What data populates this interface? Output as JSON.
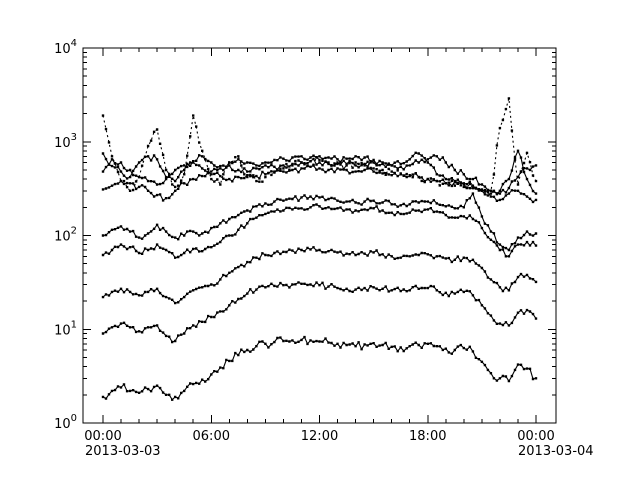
{
  "figure": {
    "background": "#ffffff",
    "line_color": "#000000"
  },
  "chart_data": {
    "type": "line",
    "title": "",
    "xlabel": "",
    "ylabel": "",
    "grid": false,
    "legend": "none",
    "x_axis": {
      "range_hours": [
        0,
        24
      ],
      "major_tick_hours": [
        0,
        6,
        12,
        18,
        24
      ],
      "major_tick_labels": [
        "00:00",
        "06:00",
        "12:00",
        "18:00",
        "00:00"
      ],
      "minor_tick_every_hours": 1,
      "date_label_left": "2013-03-03",
      "date_label_right": "2013-03-04"
    },
    "y_axis": {
      "scale": "log",
      "range": [
        1,
        10000
      ],
      "major_tick_exponents": [
        0,
        1,
        2,
        3,
        4
      ],
      "major_tick_labels": [
        {
          "base": "10",
          "exp": "0"
        },
        {
          "base": "10",
          "exp": "1"
        },
        {
          "base": "10",
          "exp": "2"
        },
        {
          "base": "10",
          "exp": "3"
        },
        {
          "base": "10",
          "exp": "4"
        }
      ],
      "minor_ticks": "2-9 per decade"
    },
    "anchor_hours": {
      "start": 0,
      "step": 0.5,
      "count": 49
    },
    "series": [
      {
        "name": "series-1-spiky",
        "style": "dotted",
        "marker": "square",
        "noise_dex": 0.05,
        "seed": 11,
        "values": [
          1900,
          700,
          380,
          300,
          420,
          900,
          1350,
          500,
          330,
          450,
          1900,
          800,
          400,
          350,
          600,
          700,
          420,
          380,
          420,
          480,
          520,
          560,
          600,
          620,
          640,
          600,
          580,
          560,
          600,
          560,
          520,
          500,
          480,
          460,
          440,
          420,
          400,
          380,
          360,
          340,
          330,
          320,
          310,
          300,
          1400,
          2900,
          350,
          760,
          380
        ]
      },
      {
        "name": "series-2",
        "style": "solid",
        "marker": "square",
        "noise_dex": 0.035,
        "seed": 12,
        "values": [
          750,
          550,
          480,
          420,
          600,
          700,
          650,
          420,
          380,
          500,
          620,
          700,
          600,
          550,
          600,
          650,
          600,
          560,
          600,
          640,
          660,
          680,
          700,
          680,
          700,
          680,
          650,
          660,
          700,
          680,
          640,
          600,
          560,
          540,
          560,
          600,
          650,
          700,
          600,
          500,
          450,
          400,
          350,
          300,
          280,
          320,
          420,
          520,
          560
        ]
      },
      {
        "name": "series-3",
        "style": "solid",
        "marker": "square",
        "noise_dex": 0.035,
        "seed": 13,
        "values": [
          480,
          650,
          600,
          500,
          420,
          380,
          350,
          400,
          500,
          560,
          600,
          520,
          480,
          520,
          560,
          500,
          480,
          520,
          560,
          540,
          560,
          580,
          600,
          620,
          600,
          580,
          600,
          580,
          560,
          580,
          600,
          580,
          560,
          580,
          650,
          750,
          600,
          450,
          400,
          380,
          350,
          320,
          300,
          280,
          300,
          400,
          800,
          400,
          280
        ]
      },
      {
        "name": "series-4",
        "style": "solid",
        "marker": "square",
        "noise_dex": 0.035,
        "seed": 14,
        "values": [
          310,
          340,
          380,
          360,
          330,
          300,
          270,
          250,
          300,
          360,
          400,
          430,
          450,
          430,
          400,
          420,
          440,
          430,
          450,
          470,
          480,
          500,
          520,
          540,
          520,
          500,
          520,
          500,
          480,
          500,
          480,
          460,
          440,
          450,
          430,
          420,
          400,
          380,
          360,
          370,
          360,
          340,
          300,
          260,
          240,
          280,
          300,
          260,
          240
        ]
      },
      {
        "name": "series-5",
        "style": "solid",
        "marker": "square",
        "noise_dex": 0.03,
        "seed": 15,
        "values": [
          100,
          115,
          125,
          110,
          95,
          105,
          130,
          110,
          95,
          100,
          110,
          105,
          120,
          135,
          150,
          165,
          185,
          205,
          220,
          230,
          235,
          245,
          255,
          260,
          255,
          245,
          235,
          230,
          225,
          230,
          235,
          225,
          215,
          210,
          215,
          225,
          230,
          220,
          205,
          195,
          200,
          280,
          160,
          110,
          80,
          70,
          95,
          110,
          105
        ]
      },
      {
        "name": "series-6",
        "style": "solid",
        "marker": "square",
        "noise_dex": 0.03,
        "seed": 16,
        "values": [
          62,
          70,
          80,
          75,
          65,
          70,
          80,
          70,
          58,
          65,
          72,
          68,
          75,
          85,
          100,
          115,
          135,
          155,
          170,
          180,
          185,
          190,
          195,
          200,
          205,
          200,
          195,
          190,
          185,
          190,
          195,
          185,
          175,
          170,
          175,
          185,
          190,
          180,
          165,
          155,
          160,
          150,
          120,
          90,
          70,
          60,
          80,
          85,
          78
        ]
      },
      {
        "name": "series-7",
        "style": "solid",
        "marker": "square",
        "noise_dex": 0.03,
        "seed": 17,
        "values": [
          22,
          25,
          27,
          25,
          23,
          25,
          27,
          22,
          19,
          22,
          26,
          28,
          30,
          34,
          40,
          46,
          52,
          58,
          62,
          65,
          67,
          69,
          70,
          71,
          70,
          68,
          66,
          64,
          62,
          64,
          66,
          63,
          60,
          58,
          60,
          62,
          63,
          60,
          57,
          55,
          58,
          55,
          45,
          34,
          28,
          26,
          36,
          38,
          32
        ]
      },
      {
        "name": "series-8",
        "style": "solid",
        "marker": "square",
        "noise_dex": 0.035,
        "seed": 18,
        "values": [
          9,
          10.5,
          11.5,
          10.5,
          9.5,
          10.5,
          11,
          8.5,
          7.5,
          9,
          11,
          12,
          13.5,
          15.5,
          18,
          21,
          24,
          26.5,
          28,
          29,
          29.5,
          30,
          30.5,
          30,
          29.5,
          28.5,
          27.5,
          27,
          26.5,
          27.5,
          28,
          27,
          26,
          25.5,
          26,
          27,
          27.5,
          26,
          24.5,
          24,
          25,
          23,
          18,
          14,
          11.5,
          11,
          15,
          16,
          13
        ]
      },
      {
        "name": "series-9",
        "style": "solid",
        "marker": "square",
        "noise_dex": 0.045,
        "seed": 19,
        "values": [
          1.9,
          2.2,
          2.4,
          2.2,
          2.1,
          2.3,
          2.5,
          2.0,
          1.9,
          2.2,
          2.6,
          2.9,
          3.3,
          3.9,
          4.6,
          5.3,
          6.0,
          6.6,
          7.0,
          7.3,
          7.5,
          7.6,
          7.7,
          7.6,
          7.4,
          7.2,
          7.0,
          6.8,
          6.6,
          6.9,
          7.1,
          6.8,
          6.5,
          6.4,
          6.6,
          6.8,
          7.0,
          6.6,
          6.2,
          6.0,
          6.3,
          5.8,
          4.5,
          3.4,
          3.0,
          2.8,
          4.2,
          3.8,
          3.0
        ]
      }
    ]
  }
}
